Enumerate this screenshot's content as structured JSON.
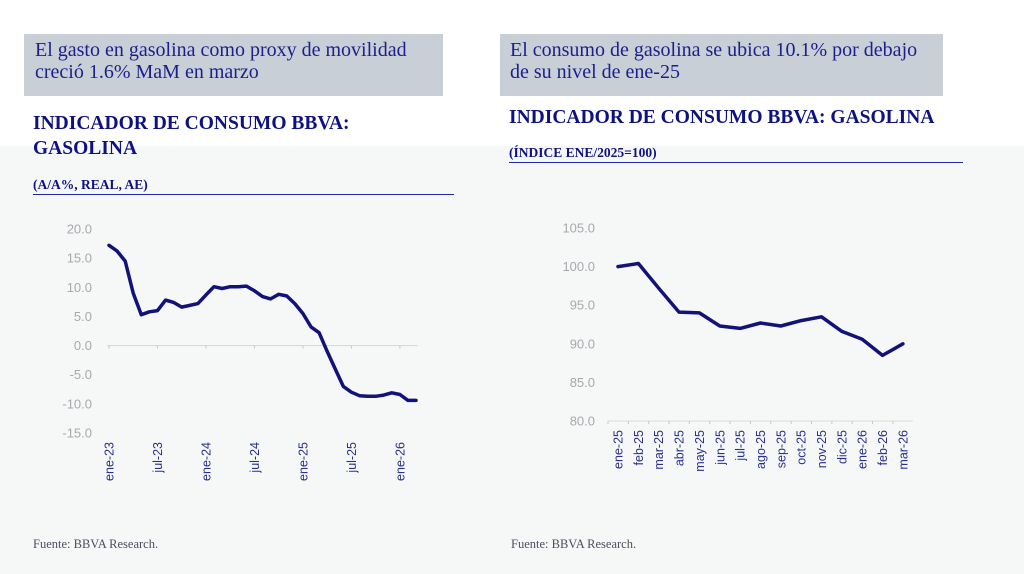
{
  "left_panel": {
    "callout": "El gasto en gasolina como proxy de movilidad creció 1.6% MaM en marzo",
    "title": "INDICADOR DE CONSUMO BBVA: GASOLINA",
    "subtitle": "(A/A%, REAL, AE)",
    "source": "Fuente: BBVA Research."
  },
  "right_panel": {
    "callout": "El consumo de gasolina se ubica 10.1% por debajo de su nivel de ene-25",
    "title": "INDICADOR DE CONSUMO BBVA: GASOLINA",
    "subtitle": "(ÍNDICE ENE/2025=100)",
    "source": "Fuente: BBVA Research."
  },
  "colors": {
    "line": "#12127a",
    "accent": "#0d1280",
    "callout_bg": "#c9cfd6"
  },
  "chart_data": [
    {
      "type": "line",
      "title": "INDICADOR DE CONSUMO BBVA: GASOLINA",
      "subtitle": "(A/A%, REAL, AE)",
      "xlabel": "",
      "ylabel": "",
      "ylim": [
        -15,
        20
      ],
      "yticks": [
        "20.0",
        "15.0",
        "10.0",
        "5.0",
        "0.0",
        "-5.0",
        "-10.0",
        "-15.0"
      ],
      "ytick_values": [
        20,
        15,
        10,
        5,
        0,
        -5,
        -10,
        -15
      ],
      "xtick_labels": [
        "ene-23",
        "jul-23",
        "ene-24",
        "jul-24",
        "ene-25",
        "jul-25",
        "ene-26"
      ],
      "xtick_index": [
        0,
        6,
        12,
        18,
        24,
        30,
        36
      ],
      "x_start": "ene-23",
      "x_end": "mar-26",
      "grid": false,
      "legend": "none",
      "series": [
        {
          "name": "Gasolina A/A%",
          "values": [
            17.2,
            16.2,
            14.5,
            9.0,
            5.3,
            5.8,
            6.0,
            7.8,
            7.4,
            6.6,
            6.9,
            7.2,
            8.7,
            10.1,
            9.8,
            10.1,
            10.1,
            10.2,
            9.4,
            8.4,
            8.0,
            8.8,
            8.5,
            7.2,
            5.5,
            3.2,
            2.2,
            -1.0,
            -4.0,
            -7.0,
            -8.0,
            -8.6,
            -8.7,
            -8.7,
            -8.5,
            -8.1,
            -8.4,
            -9.4,
            -9.4
          ]
        }
      ]
    },
    {
      "type": "line",
      "title": "INDICADOR DE CONSUMO BBVA: GASOLINA",
      "subtitle": "(ÍNDICE ENE/2025=100)",
      "xlabel": "",
      "ylabel": "",
      "ylim": [
        80,
        105
      ],
      "yticks": [
        "105.0",
        "100.0",
        "95.0",
        "90.0",
        "85.0",
        "80.0"
      ],
      "ytick_values": [
        105,
        100,
        95,
        90,
        85,
        80
      ],
      "categories": [
        "ene-25",
        "feb-25",
        "mar-25",
        "abr-25",
        "may-25",
        "jun-25",
        "jul-25",
        "ago-25",
        "sep-25",
        "oct-25",
        "nov-25",
        "dic-25",
        "ene-26",
        "feb-26",
        "mar-26"
      ],
      "grid": false,
      "legend": "none",
      "series": [
        {
          "name": "Índice ene/2025=100",
          "values": [
            100.0,
            100.4,
            97.2,
            94.1,
            94.0,
            92.3,
            92.0,
            92.7,
            92.3,
            93.0,
            93.5,
            91.6,
            90.6,
            88.5,
            90.0
          ]
        }
      ]
    }
  ]
}
